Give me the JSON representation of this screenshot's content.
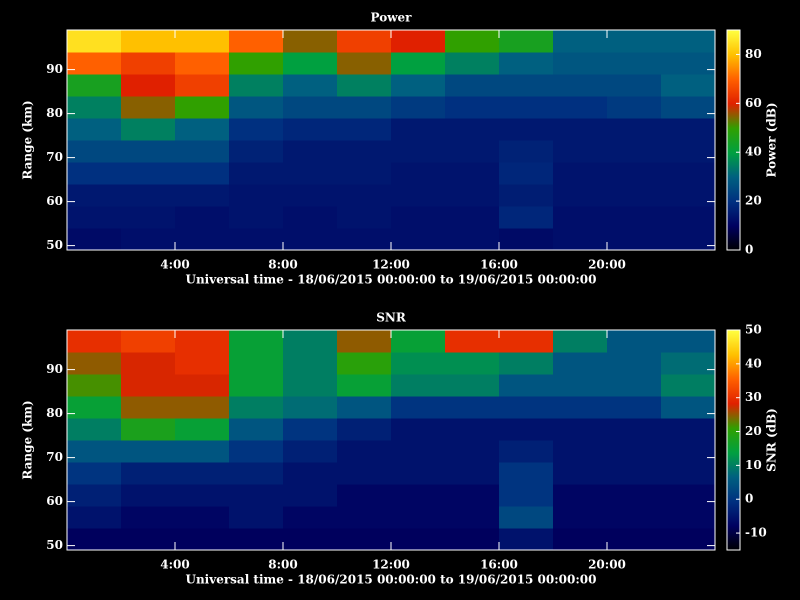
{
  "chart_data": [
    {
      "type": "heatmap",
      "title": "Power",
      "xlabel": "Universal time - 18/06/2015 00:00:00 to 19/06/2015 00:00:00",
      "ylabel": "Range (km)",
      "colorbar_label": "Power (dB)",
      "xbins": [
        0,
        2,
        4,
        6,
        8,
        10,
        12,
        14,
        16,
        18,
        20,
        22,
        24
      ],
      "ybins": [
        49,
        54,
        59,
        64,
        69,
        74,
        79,
        84,
        89,
        94,
        99
      ],
      "z": [
        [
          12,
          13,
          13,
          13,
          13,
          13,
          13,
          13,
          12,
          13,
          13,
          13
        ],
        [
          14,
          14,
          13,
          14,
          13,
          14,
          13,
          13,
          18,
          13,
          13,
          13
        ],
        [
          15,
          15,
          15,
          14,
          14,
          14,
          14,
          14,
          16,
          14,
          14,
          14
        ],
        [
          20,
          20,
          20,
          15,
          15,
          15,
          14,
          14,
          18,
          14,
          14,
          14
        ],
        [
          25,
          25,
          25,
          17,
          15,
          15,
          15,
          15,
          17,
          15,
          15,
          15
        ],
        [
          30,
          35,
          30,
          20,
          18,
          18,
          15,
          15,
          15,
          15,
          15,
          15
        ],
        [
          35,
          55,
          50,
          28,
          25,
          25,
          22,
          20,
          20,
          20,
          22,
          25
        ],
        [
          45,
          60,
          65,
          35,
          30,
          35,
          30,
          25,
          25,
          25,
          25,
          30
        ],
        [
          70,
          65,
          70,
          50,
          40,
          55,
          40,
          35,
          30,
          28,
          28,
          28
        ],
        [
          85,
          80,
          80,
          70,
          55,
          65,
          60,
          50,
          45,
          30,
          30,
          30
        ]
      ],
      "xlim": [
        0,
        24
      ],
      "ylim": [
        49,
        99
      ],
      "xticks": [
        {
          "value": 4,
          "label": "4:00"
        },
        {
          "value": 8,
          "label": "8:00"
        },
        {
          "value": 12,
          "label": "12:00"
        },
        {
          "value": 16,
          "label": "16:00"
        },
        {
          "value": 20,
          "label": "20:00"
        }
      ],
      "yticks": [
        50,
        60,
        70,
        80,
        90
      ],
      "zlim": [
        0,
        90
      ],
      "zticks": [
        0,
        20,
        40,
        60,
        80
      ],
      "colorscale": [
        "#000000",
        "#000060",
        "#003080",
        "#006080",
        "#00a040",
        "#30a000",
        "#e02000",
        "#ff6000",
        "#ffc000",
        "#ffff40"
      ]
    },
    {
      "type": "heatmap",
      "title": "SNR",
      "xlabel": "Universal time - 18/06/2015 00:00:00 to 19/06/2015 00:00:00",
      "ylabel": "Range (km)",
      "colorbar_label": "SNR (dB)",
      "xbins": [
        0,
        2,
        4,
        6,
        8,
        10,
        12,
        14,
        16,
        18,
        20,
        22,
        24
      ],
      "ybins": [
        49,
        54,
        59,
        64,
        69,
        74,
        79,
        84,
        89,
        94,
        99
      ],
      "z": [
        [
          -8,
          -8,
          -8,
          -8,
          -8,
          -8,
          -8,
          -8,
          -5,
          -8,
          -8,
          -8
        ],
        [
          -5,
          -7,
          -7,
          -5,
          -7,
          -7,
          -7,
          -7,
          3,
          -7,
          -7,
          -7
        ],
        [
          -3,
          -5,
          -5,
          -5,
          -5,
          -7,
          -7,
          -7,
          0,
          -7,
          -7,
          -7
        ],
        [
          0,
          -3,
          -3,
          -3,
          -5,
          -5,
          -5,
          -5,
          0,
          -5,
          -5,
          -5
        ],
        [
          5,
          5,
          5,
          0,
          -3,
          -5,
          -5,
          -5,
          -3,
          -5,
          -5,
          -5
        ],
        [
          10,
          18,
          15,
          5,
          0,
          -3,
          -5,
          -5,
          -5,
          -5,
          -5,
          -5
        ],
        [
          15,
          25,
          25,
          10,
          8,
          5,
          0,
          0,
          0,
          0,
          0,
          5
        ],
        [
          22,
          28,
          28,
          15,
          10,
          15,
          10,
          10,
          5,
          5,
          5,
          10
        ],
        [
          25,
          28,
          30,
          15,
          10,
          20,
          12,
          12,
          10,
          5,
          5,
          8
        ],
        [
          30,
          32,
          30,
          15,
          10,
          25,
          15,
          30,
          30,
          10,
          5,
          5
        ]
      ],
      "xlim": [
        0,
        24
      ],
      "ylim": [
        49,
        99
      ],
      "xticks": [
        {
          "value": 4,
          "label": "4:00"
        },
        {
          "value": 8,
          "label": "8:00"
        },
        {
          "value": 12,
          "label": "12:00"
        },
        {
          "value": 16,
          "label": "16:00"
        },
        {
          "value": 20,
          "label": "20:00"
        }
      ],
      "yticks": [
        50,
        60,
        70,
        80,
        90
      ],
      "zlim": [
        -15,
        50
      ],
      "zticks": [
        -10,
        0,
        10,
        20,
        30,
        40,
        50
      ],
      "colorscale": [
        "#000000",
        "#000060",
        "#003080",
        "#006080",
        "#00a040",
        "#30a000",
        "#e02000",
        "#ff6000",
        "#ffc000",
        "#ffff40"
      ]
    }
  ]
}
